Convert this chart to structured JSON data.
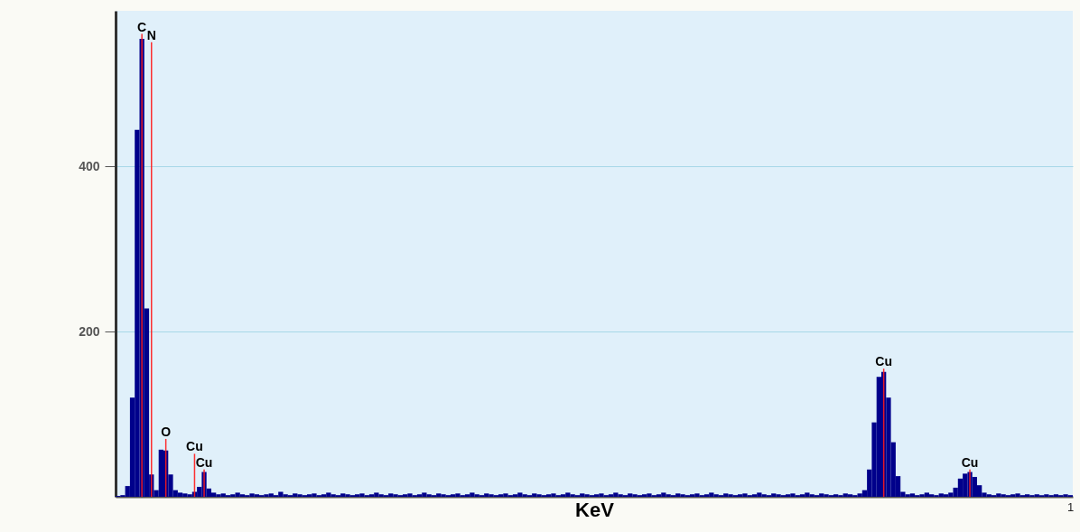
{
  "chart_data": {
    "type": "bar",
    "xlabel": "KeV",
    "categories": [
      null,
      null,
      null,
      null,
      null,
      null,
      null,
      null,
      null,
      null,
      null,
      null,
      null,
      null,
      null,
      null,
      null,
      null,
      null,
      null,
      null,
      null,
      null,
      null,
      null,
      null,
      null,
      null,
      null,
      null,
      null,
      null,
      null,
      null,
      null,
      null,
      null,
      null,
      null,
      null,
      null,
      null,
      null,
      null,
      null,
      null,
      null,
      null,
      null,
      null,
      null,
      null,
      null,
      null,
      null,
      null,
      null,
      null,
      null,
      null,
      null,
      null,
      null,
      null,
      null,
      null,
      null,
      null,
      null,
      null,
      null,
      null,
      null,
      null,
      null,
      null,
      null,
      null,
      null,
      null,
      null,
      null,
      null,
      null,
      null,
      null,
      null,
      null,
      null,
      null,
      null,
      null,
      null,
      null,
      null,
      null,
      null,
      null,
      null,
      null,
      null,
      null,
      null,
      null,
      null,
      null,
      null,
      null,
      null,
      null,
      null,
      null,
      null,
      null,
      null,
      null,
      null,
      null,
      null,
      null,
      null,
      null,
      null,
      null,
      null,
      null,
      null,
      null,
      null,
      null,
      null,
      null,
      null,
      null,
      null,
      null,
      null,
      null,
      null,
      null,
      null,
      null,
      null,
      null,
      null,
      null,
      null,
      null,
      null,
      null,
      null,
      null,
      null,
      null,
      null,
      null,
      null,
      null,
      null,
      null,
      null,
      null,
      null,
      null,
      null,
      null,
      null,
      null,
      null,
      null,
      null,
      null,
      null,
      null,
      null,
      null,
      null,
      null,
      null,
      null,
      null,
      null,
      null,
      null,
      null,
      null,
      null,
      null,
      null,
      null,
      null,
      null,
      null,
      null,
      null,
      null,
      null,
      null,
      null,
      null
    ],
    "series": [
      {
        "color": "#00008b",
        "values": [
          1,
          2,
          13,
          120,
          444,
          554,
          228,
          27,
          8,
          57,
          56,
          27,
          8,
          5,
          4,
          3,
          6,
          12,
          30,
          10,
          5,
          3,
          4,
          2,
          3,
          5,
          3,
          2,
          4,
          3,
          2,
          3,
          4,
          2,
          6,
          3,
          2,
          4,
          3,
          2,
          3,
          4,
          2,
          3,
          5,
          3,
          2,
          4,
          3,
          2,
          3,
          4,
          2,
          3,
          5,
          3,
          2,
          4,
          3,
          2,
          3,
          4,
          2,
          3,
          5,
          3,
          2,
          4,
          3,
          2,
          3,
          4,
          2,
          3,
          5,
          3,
          2,
          4,
          3,
          2,
          3,
          4,
          2,
          3,
          5,
          3,
          2,
          4,
          3,
          2,
          3,
          4,
          2,
          3,
          5,
          3,
          2,
          4,
          3,
          2,
          3,
          4,
          2,
          3,
          5,
          3,
          2,
          4,
          3,
          2,
          3,
          4,
          2,
          3,
          5,
          3,
          2,
          4,
          3,
          2,
          3,
          4,
          2,
          3,
          5,
          3,
          2,
          4,
          3,
          2,
          3,
          4,
          2,
          3,
          5,
          3,
          2,
          4,
          3,
          2,
          3,
          4,
          2,
          3,
          5,
          3,
          2,
          4,
          3,
          2,
          3,
          2,
          4,
          3,
          2,
          4,
          8,
          33,
          90,
          145,
          151,
          120,
          66,
          25,
          6,
          3,
          4,
          2,
          3,
          5,
          3,
          2,
          4,
          3,
          5,
          11,
          22,
          28,
          30,
          24,
          14,
          5,
          3,
          2,
          4,
          3,
          2,
          3,
          4,
          2,
          3,
          2,
          3,
          2,
          3,
          2,
          3,
          2,
          3,
          2
        ]
      },
      {
        "color": "#ff1a1a",
        "values": [
          null,
          null,
          null,
          null,
          null,
          560,
          null,
          550,
          null,
          null,
          70,
          null,
          null,
          null,
          null,
          null,
          52,
          null,
          33,
          null,
          null,
          null,
          null,
          null,
          null,
          null,
          null,
          null,
          null,
          null,
          null,
          null,
          null,
          null,
          null,
          null,
          null,
          null,
          null,
          null,
          null,
          null,
          null,
          null,
          null,
          null,
          null,
          null,
          null,
          null,
          null,
          null,
          null,
          null,
          null,
          null,
          null,
          null,
          null,
          null,
          null,
          null,
          null,
          null,
          null,
          null,
          null,
          null,
          null,
          null,
          null,
          null,
          null,
          null,
          null,
          null,
          null,
          null,
          null,
          null,
          null,
          null,
          null,
          null,
          null,
          null,
          null,
          null,
          null,
          null,
          null,
          null,
          null,
          null,
          null,
          null,
          null,
          null,
          null,
          null,
          null,
          null,
          null,
          null,
          null,
          null,
          null,
          null,
          null,
          null,
          null,
          null,
          null,
          null,
          null,
          null,
          null,
          null,
          null,
          null,
          null,
          null,
          null,
          null,
          null,
          null,
          null,
          null,
          null,
          null,
          null,
          null,
          null,
          null,
          null,
          null,
          null,
          null,
          null,
          null,
          null,
          null,
          null,
          null,
          null,
          null,
          null,
          null,
          null,
          null,
          null,
          null,
          null,
          null,
          null,
          null,
          null,
          null,
          null,
          null,
          155,
          null,
          null,
          null,
          null,
          null,
          null,
          null,
          null,
          null,
          null,
          null,
          null,
          null,
          null,
          null,
          null,
          null,
          33,
          null,
          null,
          null,
          null,
          null,
          null,
          null,
          null,
          null,
          null,
          null,
          null,
          null,
          null,
          null,
          null,
          null,
          null,
          null,
          null,
          null
        ],
        "value_labels": [
          null,
          null,
          null,
          null,
          null,
          "C",
          null,
          "N",
          null,
          null,
          "O",
          null,
          null,
          null,
          null,
          null,
          "Cu",
          null,
          "Cu",
          null,
          null,
          null,
          null,
          null,
          null,
          null,
          null,
          null,
          null,
          null,
          null,
          null,
          null,
          null,
          null,
          null,
          null,
          null,
          null,
          null,
          null,
          null,
          null,
          null,
          null,
          null,
          null,
          null,
          null,
          null,
          null,
          null,
          null,
          null,
          null,
          null,
          null,
          null,
          null,
          null,
          null,
          null,
          null,
          null,
          null,
          null,
          null,
          null,
          null,
          null,
          null,
          null,
          null,
          null,
          null,
          null,
          null,
          null,
          null,
          null,
          null,
          null,
          null,
          null,
          null,
          null,
          null,
          null,
          null,
          null,
          null,
          null,
          null,
          null,
          null,
          null,
          null,
          null,
          null,
          null,
          null,
          null,
          null,
          null,
          null,
          null,
          null,
          null,
          null,
          null,
          null,
          null,
          null,
          null,
          null,
          null,
          null,
          null,
          null,
          null,
          null,
          null,
          null,
          null,
          null,
          null,
          null,
          null,
          null,
          null,
          null,
          null,
          null,
          null,
          null,
          null,
          null,
          null,
          null,
          null,
          null,
          null,
          null,
          null,
          null,
          null,
          null,
          null,
          null,
          null,
          null,
          null,
          null,
          null,
          null,
          null,
          null,
          null,
          null,
          null,
          "Cu",
          null,
          null,
          null,
          null,
          null,
          null,
          null,
          null,
          null,
          null,
          null,
          null,
          null,
          null,
          null,
          null,
          null,
          "Cu",
          null,
          null,
          null,
          null,
          null,
          null,
          null,
          null,
          null,
          null,
          null,
          null,
          null,
          null,
          null,
          null,
          null,
          null,
          null,
          null,
          null
        ]
      }
    ],
    "ylim": [
      0,
      588
    ],
    "yticks": [
      200,
      400
    ],
    "grid": "y",
    "tick_labels": "y",
    "annotations": [
      "1"
    ]
  }
}
